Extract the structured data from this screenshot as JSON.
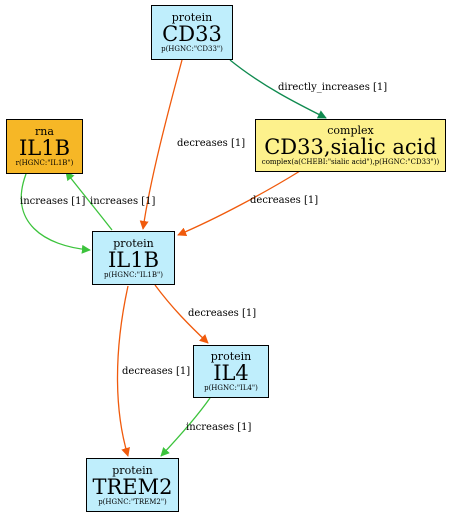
{
  "colors": {
    "decreases": "#f05a0c",
    "increases": "#3cc33c",
    "directly_increases": "#0f8a4f",
    "protein_fill": "#bfeefc",
    "rna_fill": "#f6b726",
    "complex_fill": "#fdf18c"
  },
  "nodes": {
    "cd33": {
      "kind": "protein",
      "name": "CD33",
      "sub": "p(HGNC:\"CD33\")"
    },
    "il1b_rna": {
      "kind": "rna",
      "name": "IL1B",
      "sub": "r(HGNC:\"IL1B\")"
    },
    "complex": {
      "kind": "complex",
      "name": "CD33,sialic acid",
      "sub": "complex(a(CHEBI:\"sialic acid\"),p(HGNC:\"CD33\"))"
    },
    "il1b": {
      "kind": "protein",
      "name": "IL1B",
      "sub": "p(HGNC:\"IL1B\")"
    },
    "il4": {
      "kind": "protein",
      "name": "IL4",
      "sub": "p(HGNC:\"IL4\")"
    },
    "trem2": {
      "kind": "protein",
      "name": "TREM2",
      "sub": "p(HGNC:\"TREM2\")"
    }
  },
  "edges": [
    {
      "id": "cd33-complex",
      "label": "directly_increases [1]",
      "relation": "directly_increases"
    },
    {
      "id": "cd33-il1b",
      "label": "decreases [1]",
      "relation": "decreases"
    },
    {
      "id": "complex-il1b",
      "label": "decreases [1]",
      "relation": "decreases"
    },
    {
      "id": "rna-il1b",
      "label": "increases [1]",
      "relation": "increases"
    },
    {
      "id": "il1b-rna",
      "label": "increases [1]",
      "relation": "increases"
    },
    {
      "id": "il1b-il4",
      "label": "decreases [1]",
      "relation": "decreases"
    },
    {
      "id": "il1b-trem2",
      "label": "decreases [1]",
      "relation": "decreases"
    },
    {
      "id": "il4-trem2",
      "label": "increases [1]",
      "relation": "increases"
    }
  ]
}
